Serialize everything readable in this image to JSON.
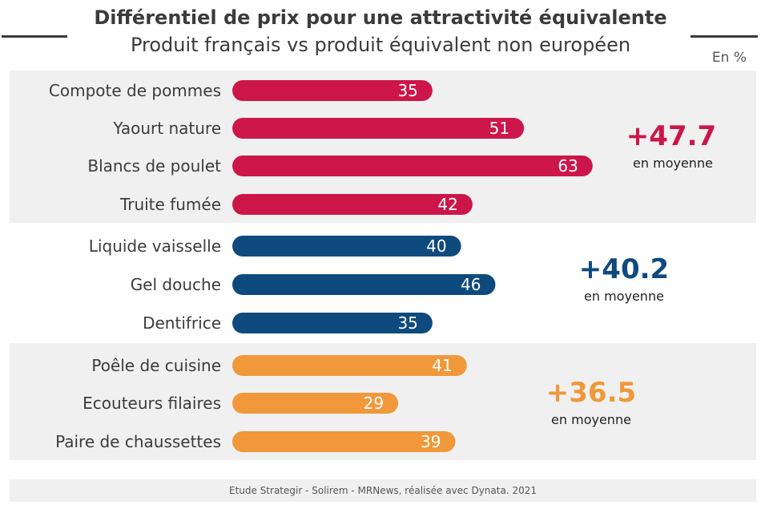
{
  "header": {
    "title": "Différentiel de prix pour une attractivité équivalente",
    "subtitle": "Produit français vs produit équivalent non européen",
    "unit": "En %"
  },
  "colors": {
    "group1": "#cc1649",
    "group2": "#0e4a7e",
    "group3": "#f0983a"
  },
  "averages": {
    "group1": {
      "value": "+47.7",
      "label": "en moyenne"
    },
    "group2": {
      "value": "+40.2",
      "label": "en moyenne"
    },
    "group3": {
      "value": "+36.5",
      "label": "en moyenne"
    }
  },
  "chart_data": {
    "type": "bar",
    "orientation": "horizontal",
    "categories": [
      "Compote de pommes",
      "Yaourt nature",
      "Blancs de poulet",
      "Truite fumée",
      "Liquide vaisselle",
      "Gel douche",
      "Dentifrice",
      "Poêle de cuisine",
      "Ecouteurs filaires",
      "Paire de chaussettes"
    ],
    "values": [
      35,
      51,
      63,
      42,
      40,
      46,
      35,
      41,
      29,
      39
    ],
    "groups": [
      1,
      1,
      1,
      1,
      2,
      2,
      2,
      3,
      3,
      3
    ],
    "grid": false
  },
  "footer": {
    "source": "Etude Strategir - Solirem - MRNews, réalisée avec Dynata. 2021"
  }
}
